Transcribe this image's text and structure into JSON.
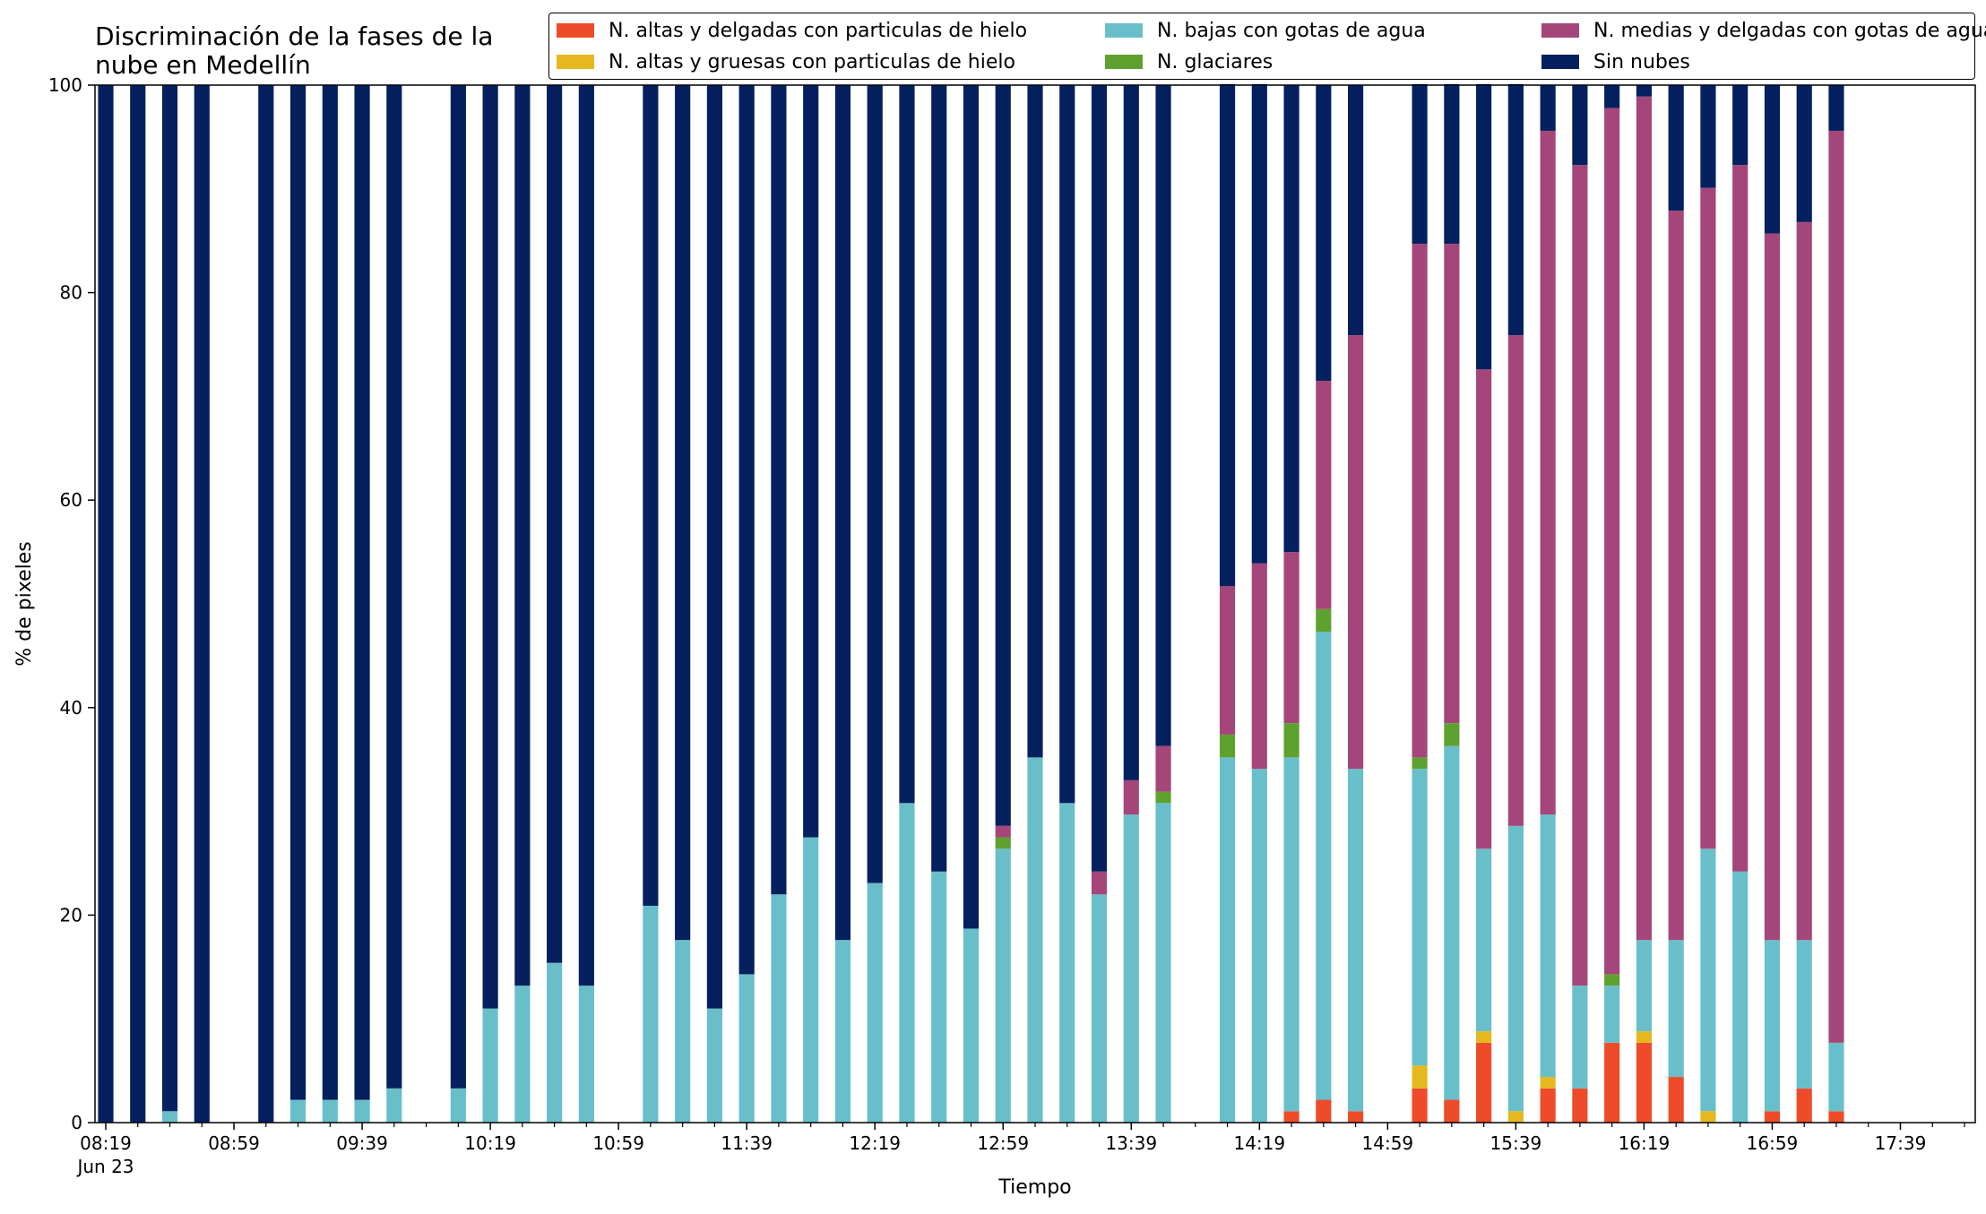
{
  "chart_data": {
    "type": "bar",
    "stacked": true,
    "title": "Discriminación de la fases de la nube en Medellín",
    "title_lines": [
      "Discriminación de la fases de la",
      "nube en Medellín"
    ],
    "xlabel": "Tiempo",
    "ylabel": "% de pixeles",
    "ylim": [
      0,
      100
    ],
    "yticks": [
      0,
      20,
      40,
      60,
      80,
      100
    ],
    "x_tick_labels": [
      "08:19",
      "08:59",
      "09:39",
      "10:19",
      "10:59",
      "11:39",
      "12:19",
      "12:59",
      "13:39",
      "14:19",
      "14:59",
      "15:39",
      "16:19",
      "16:59",
      "17:39"
    ],
    "x_date_label": "Jun 23",
    "x_range": [
      "08:19",
      "17:59"
    ],
    "grid": false,
    "legend_position": "top-right",
    "times": [
      "08:19",
      "08:29",
      "08:39",
      "08:49",
      "09:09",
      "09:19",
      "09:29",
      "09:39",
      "09:49",
      "10:09",
      "10:19",
      "10:29",
      "10:39",
      "10:49",
      "11:09",
      "11:19",
      "11:29",
      "11:39",
      "11:49",
      "11:59",
      "12:09",
      "12:19",
      "12:29",
      "12:39",
      "12:49",
      "12:59",
      "13:09",
      "13:19",
      "13:29",
      "13:39",
      "13:49",
      "14:09",
      "14:19",
      "14:29",
      "14:39",
      "14:49",
      "15:09",
      "15:19",
      "15:29",
      "15:39",
      "15:49",
      "15:59",
      "16:09",
      "16:19",
      "16:29",
      "16:39",
      "16:49",
      "16:59",
      "17:09",
      "17:19"
    ],
    "series": [
      {
        "name": "N. altas y delgadas con particulas de hielo",
        "color": "#ee4b2b",
        "values": [
          0,
          0,
          0,
          0,
          0,
          0,
          0,
          0,
          0,
          0,
          0,
          0,
          0,
          0,
          0,
          0,
          0,
          0,
          0,
          0,
          0,
          0,
          0,
          0,
          0,
          0,
          0,
          0,
          0,
          0,
          0,
          0,
          0,
          1.1,
          2.2,
          1.1,
          3.3,
          2.2,
          7.7,
          0,
          3.3,
          3.3,
          7.7,
          7.7,
          4.4,
          0,
          0,
          1.1,
          3.3,
          1.1
        ]
      },
      {
        "name": "N. altas y gruesas con particulas de hielo",
        "color": "#e5b81e",
        "values": [
          0,
          0,
          0,
          0,
          0,
          0,
          0,
          0,
          0,
          0,
          0,
          0,
          0,
          0,
          0,
          0,
          0,
          0,
          0,
          0,
          0,
          0,
          0,
          0,
          0,
          0,
          0,
          0,
          0,
          0,
          0,
          0,
          0,
          0,
          0,
          0,
          2.2,
          0,
          1.1,
          1.1,
          1.1,
          0,
          0,
          1.1,
          0,
          1.1,
          0,
          0,
          0,
          0
        ]
      },
      {
        "name": "N. bajas con gotas de agua",
        "color": "#69bfc9",
        "values": [
          0,
          0,
          1.1,
          0,
          0,
          2.2,
          2.2,
          2.2,
          3.3,
          3.3,
          11,
          13.2,
          15.4,
          13.2,
          20.9,
          17.6,
          11,
          14.3,
          22,
          27.5,
          17.6,
          23.1,
          30.8,
          24.2,
          18.7,
          26.4,
          35.2,
          30.8,
          22,
          29.7,
          30.8,
          35.2,
          34.1,
          34.1,
          45.1,
          33,
          28.6,
          34.1,
          17.6,
          27.5,
          25.3,
          9.9,
          5.5,
          8.8,
          13.2,
          25.3,
          24.2,
          16.5,
          14.3,
          6.6
        ]
      },
      {
        "name": "N. glaciares",
        "color": "#5fa12f",
        "values": [
          0,
          0,
          0,
          0,
          0,
          0,
          0,
          0,
          0,
          0,
          0,
          0,
          0,
          0,
          0,
          0,
          0,
          0,
          0,
          0,
          0,
          0,
          0,
          0,
          0,
          1.1,
          0,
          0,
          0,
          0,
          1.1,
          2.2,
          0,
          3.3,
          2.2,
          0,
          1.1,
          2.2,
          0,
          0,
          0,
          0,
          1.1,
          0,
          0,
          0,
          0,
          0,
          0,
          0
        ]
      },
      {
        "name": "N. medias y delgadas con gotas de agua",
        "color": "#a5467a",
        "values": [
          0,
          0,
          0,
          0,
          0,
          0,
          0,
          0,
          0,
          0,
          0,
          0,
          0,
          0,
          0,
          0,
          0,
          0,
          0,
          0,
          0,
          0,
          0,
          0,
          0,
          1.1,
          0,
          0,
          2.2,
          3.3,
          4.4,
          14.3,
          19.8,
          16.5,
          22,
          41.8,
          49.5,
          46.2,
          46.2,
          47.3,
          65.9,
          79.1,
          83.5,
          81.3,
          70.3,
          63.7,
          68.1,
          68.1,
          69.2,
          87.9
        ]
      },
      {
        "name": "Sin nubes",
        "color": "#04205f",
        "values": [
          100,
          100,
          98.9,
          100,
          100,
          97.8,
          97.8,
          97.8,
          96.7,
          96.7,
          89,
          86.8,
          84.6,
          86.8,
          79.1,
          82.4,
          89,
          85.7,
          78,
          72.5,
          82.4,
          76.9,
          69.2,
          75.8,
          81.3,
          71.4,
          64.8,
          69.2,
          75.8,
          67,
          63.7,
          48.4,
          46.2,
          45,
          28.5,
          24.1,
          15.4,
          15.4,
          27.5,
          24.2,
          4.4,
          7.7,
          2.2,
          1.1,
          12.1,
          9.9,
          7.7,
          14.3,
          13.2,
          4.4
        ]
      }
    ]
  }
}
